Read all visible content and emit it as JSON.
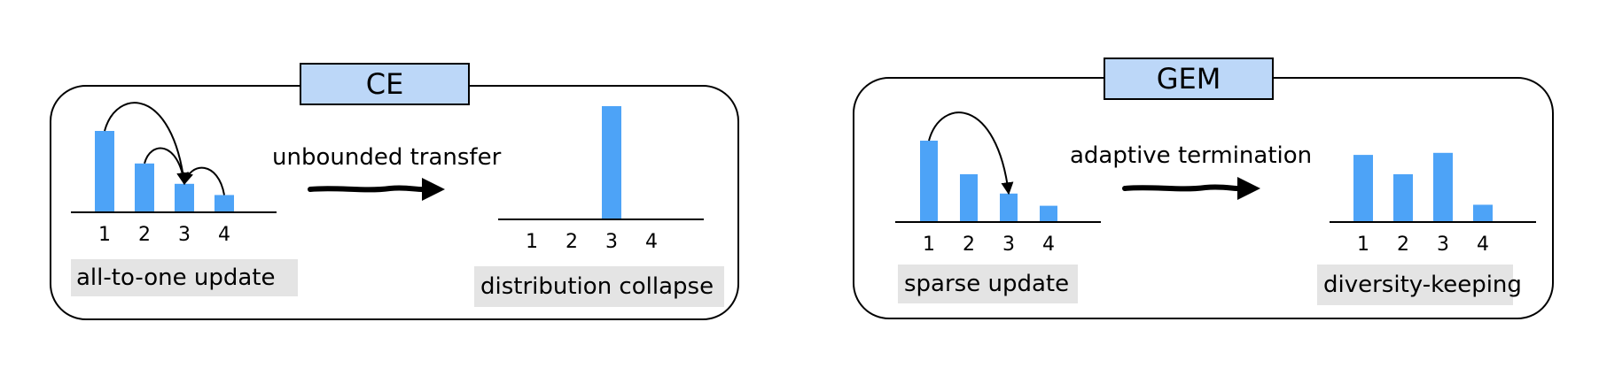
{
  "panels": [
    {
      "id": "ce",
      "title": "CE",
      "process_label": "unbounded transfer",
      "before": {
        "categories": [
          "1",
          "2",
          "3",
          "4"
        ],
        "values": [
          0.8,
          0.48,
          0.28,
          0.17
        ],
        "caption": "all-to-one update",
        "arcs": [
          [
            1,
            3
          ],
          [
            2,
            3
          ],
          [
            4,
            3
          ]
        ]
      },
      "after": {
        "categories": [
          "1",
          "2",
          "3",
          "4"
        ],
        "values": [
          0,
          0,
          1.0,
          0
        ],
        "caption": "distribution collapse"
      }
    },
    {
      "id": "gem",
      "title": "GEM",
      "process_label": "adaptive termination",
      "before": {
        "categories": [
          "1",
          "2",
          "3",
          "4"
        ],
        "values": [
          0.8,
          0.47,
          0.28,
          0.16
        ],
        "caption": "sparse update",
        "arcs": [
          [
            1,
            3
          ]
        ]
      },
      "after": {
        "categories": [
          "1",
          "2",
          "3",
          "4"
        ],
        "values": [
          0.66,
          0.47,
          0.68,
          0.17
        ],
        "caption": "diversity-keeping"
      }
    }
  ],
  "colors": {
    "bar": "#4da3f7",
    "title_box": "#bcd7f8",
    "caption_box": "#e4e4e4",
    "stroke": "#000000"
  }
}
